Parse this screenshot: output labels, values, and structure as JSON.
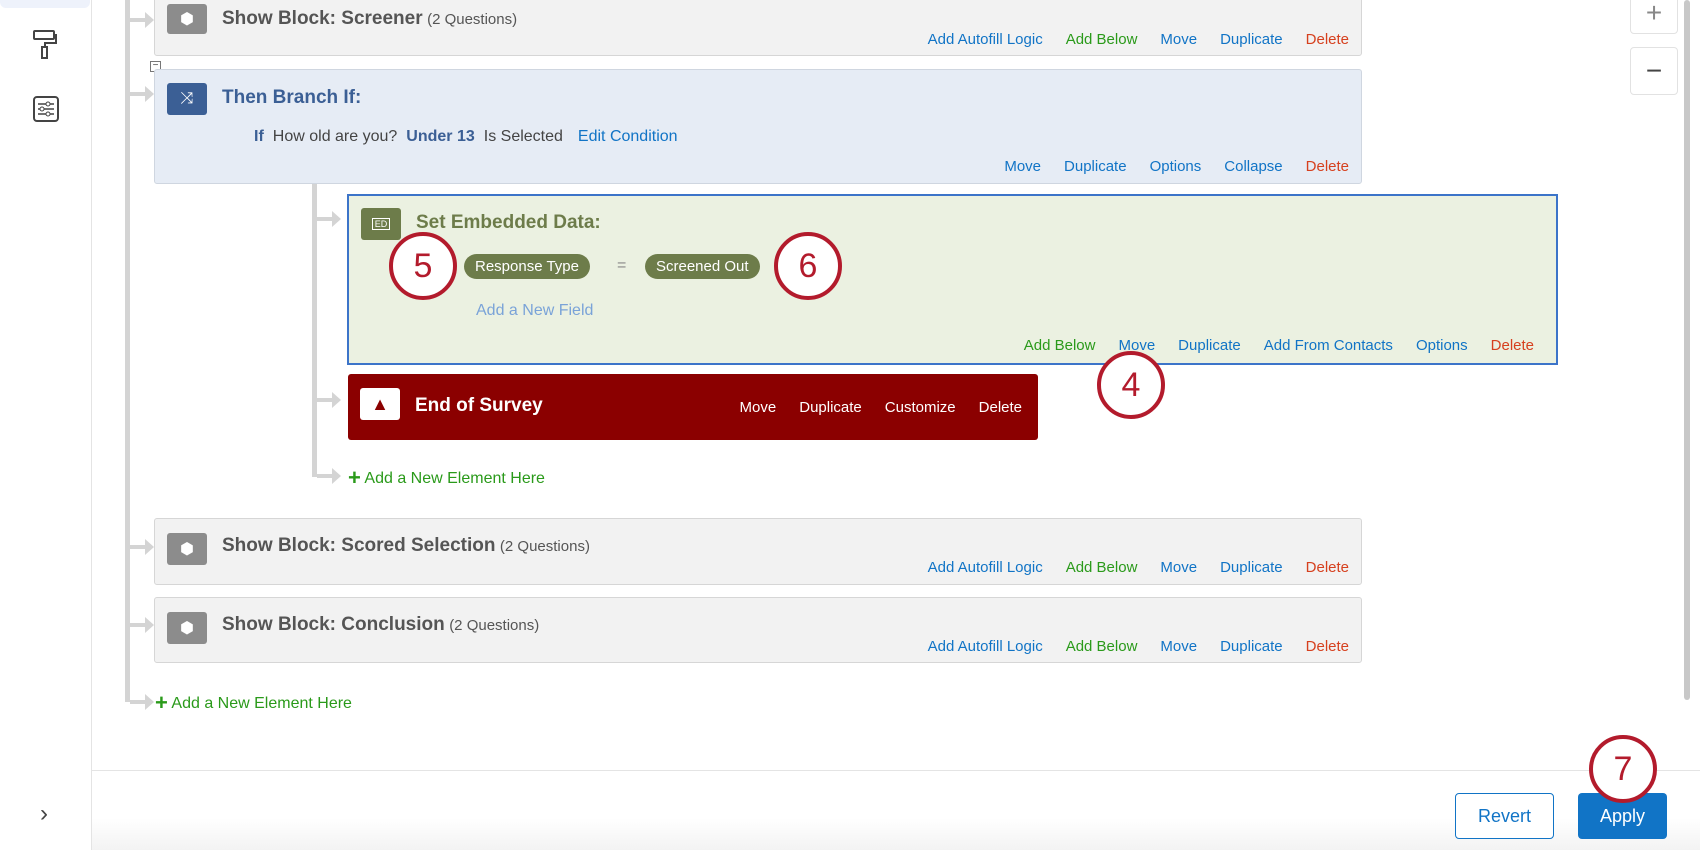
{
  "sidebar": {
    "icons": [
      "paint-roller-icon",
      "sliders-icon"
    ],
    "expand": "›"
  },
  "zoom": {
    "plus": "+",
    "minus": "−"
  },
  "blocks": {
    "screener": {
      "title": "Show Block: Screener",
      "sub": "(2 Questions)"
    },
    "scored": {
      "title": "Show Block: Scored Selection",
      "sub": "(2 Questions)"
    },
    "conclusion": {
      "title": "Show Block: Conclusion",
      "sub": "(2 Questions)"
    },
    "actions": {
      "autofill": "Add Autofill Logic",
      "add_below": "Add Below",
      "move": "Move",
      "duplicate": "Duplicate",
      "delete": "Delete"
    }
  },
  "branch": {
    "title": "Then Branch If:",
    "if": "If",
    "question": "How old are you?",
    "choice": "Under 13",
    "op": "Is Selected",
    "edit": "Edit Condition",
    "actions": {
      "move": "Move",
      "duplicate": "Duplicate",
      "options": "Options",
      "collapse": "Collapse",
      "delete": "Delete"
    }
  },
  "embedded": {
    "icon_label": "ED",
    "title": "Set Embedded Data:",
    "field": "Response Type",
    "eq": "=",
    "value": "Screened Out",
    "add_field": "Add a New Field",
    "actions": {
      "add_below": "Add Below",
      "move": "Move",
      "duplicate": "Duplicate",
      "from_contacts": "Add From Contacts",
      "options": "Options",
      "delete": "Delete"
    }
  },
  "end": {
    "title": "End of Survey",
    "actions": {
      "move": "Move",
      "duplicate": "Duplicate",
      "customize": "Customize",
      "delete": "Delete"
    }
  },
  "add_element": "Add a New Element Here",
  "footer": {
    "revert": "Revert",
    "apply": "Apply"
  },
  "annotations": [
    "4",
    "5",
    "6",
    "7"
  ],
  "colors": {
    "branch": "#3b5f95",
    "embedded": "#6d7c4a",
    "end": "#8b0000",
    "apply": "#1174c6",
    "annotation": "#b31b2c"
  }
}
